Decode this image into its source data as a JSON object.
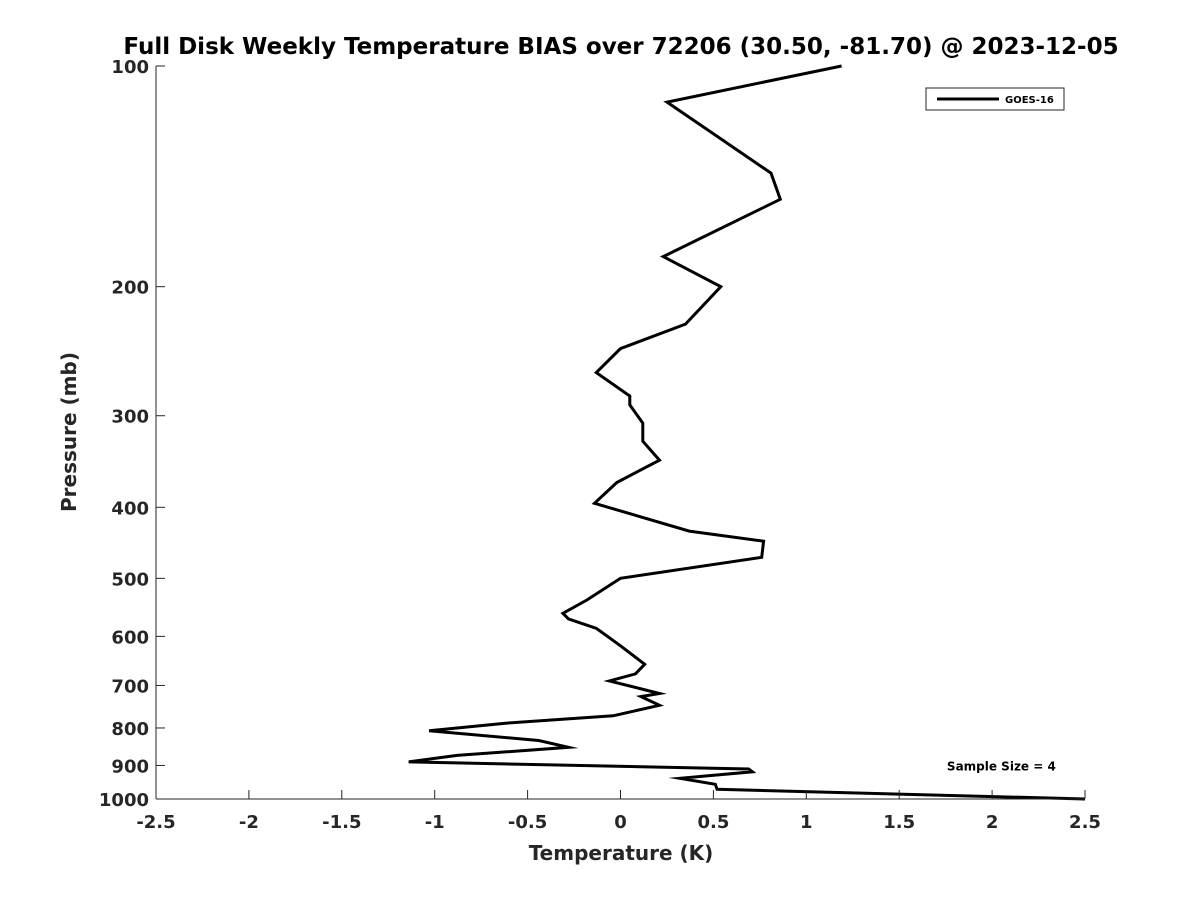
{
  "chart_data": {
    "type": "line",
    "title": "Full Disk Weekly Temperature BIAS over 72206 (30.50, -81.70) @ 2023-12-05",
    "xlabel": "Temperature (K)",
    "ylabel": "Pressure (mb)",
    "xlim": [
      -2.5,
      2.5
    ],
    "ylim": [
      100,
      1000
    ],
    "y_scale": "log",
    "y_reversed": true,
    "x_ticks": [
      "-2.5",
      "-2",
      "-1.5",
      "-1",
      "-0.5",
      "0",
      "0.5",
      "1",
      "1.5",
      "2",
      "2.5"
    ],
    "y_ticks": [
      "100",
      "200",
      "300",
      "400",
      "500",
      "600",
      "700",
      "800",
      "900",
      "1000"
    ],
    "grid": false,
    "legend_position": "top-right",
    "series": [
      {
        "name": "GOES-16",
        "color": "#000000",
        "x": [
          1.19,
          0.25,
          0.81,
          0.86,
          0.23,
          0.54,
          0.35,
          0.0,
          -0.13,
          0.05,
          0.05,
          0.12,
          0.12,
          0.21,
          -0.02,
          -0.14,
          0.37,
          0.77,
          0.76,
          0.0,
          -0.18,
          -0.31,
          -0.28,
          -0.13,
          0.0,
          0.13,
          0.08,
          -0.06,
          0.21,
          0.11,
          0.21,
          -0.04,
          -0.62,
          -1.03,
          -0.44,
          -0.28,
          -0.88,
          -1.14,
          0.69,
          0.71,
          0.32,
          0.51,
          0.52,
          2.5
        ],
        "y": [
          100,
          112,
          140,
          152,
          182,
          200,
          225,
          243,
          262,
          282,
          290,
          307,
          325,
          345,
          370,
          395,
          431,
          445,
          468,
          500,
          535,
          558,
          568,
          585,
          618,
          655,
          675,
          690,
          718,
          725,
          745,
          770,
          788,
          807,
          832,
          850,
          872,
          890,
          910,
          918,
          937,
          955,
          970,
          1000
        ]
      }
    ],
    "annotations": [
      {
        "text": "Sample Size = 4",
        "x": 2.05,
        "y": 900
      }
    ]
  }
}
